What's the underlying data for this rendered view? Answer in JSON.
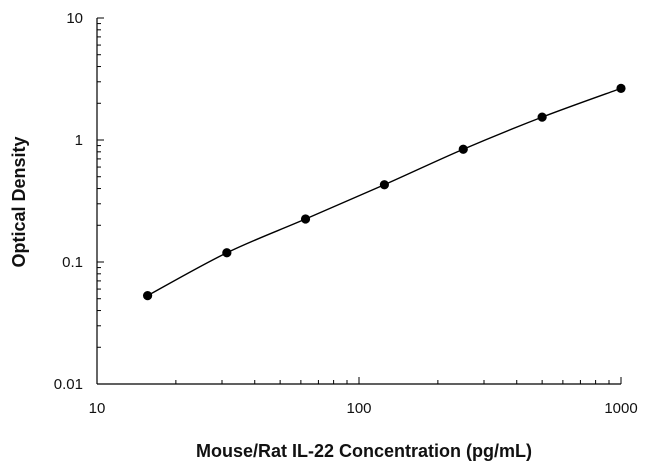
{
  "chart_data": {
    "type": "scatter",
    "title": "",
    "xlabel": "Mouse/Rat IL-22 Concentration (pg/mL)",
    "ylabel": "Optical Density",
    "xscale": "log",
    "yscale": "log",
    "xlim": [
      10,
      1000
    ],
    "ylim": [
      0.01,
      10
    ],
    "x_ticks": [
      10,
      100,
      1000
    ],
    "x_tick_labels": [
      "10",
      "100",
      "1000"
    ],
    "y_ticks": [
      0.01,
      0.1,
      1,
      10
    ],
    "y_tick_labels": [
      "0.01",
      "0.1",
      "1",
      "10"
    ],
    "grid": false,
    "legend": "none",
    "fit_line": true,
    "series": [
      {
        "x": [
          15.6,
          31.3,
          62.5,
          125,
          250,
          500,
          1000
        ],
        "y": [
          0.053,
          0.119,
          0.225,
          0.43,
          0.84,
          1.54,
          2.65
        ]
      }
    ],
    "colors": {
      "marker": "#000000",
      "line": "#000000",
      "axis": "#000000"
    }
  }
}
